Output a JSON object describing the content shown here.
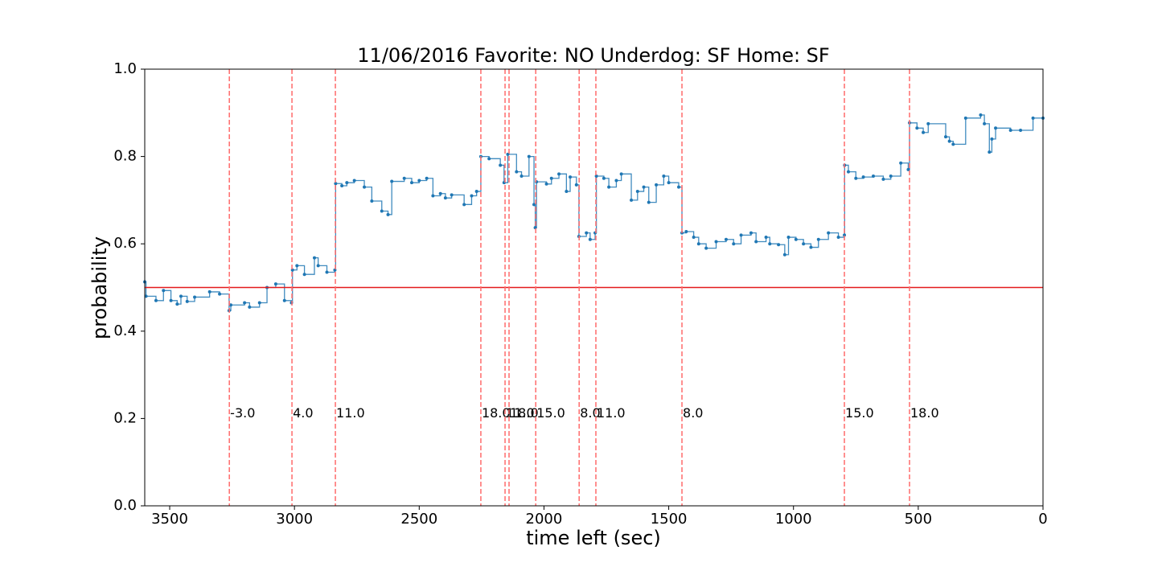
{
  "chart_data": {
    "type": "step",
    "title": "11/06/2016 Favorite: NO Underdog: SF Home: SF",
    "x_label": "time left (sec)",
    "y_label": "probability",
    "xlim": [
      3600,
      0
    ],
    "xticks": [
      3500,
      3000,
      2500,
      2000,
      1500,
      1000,
      500,
      0
    ],
    "ylim": [
      0,
      1
    ],
    "yticks": [
      {
        "value": 0,
        "label": "0.0"
      },
      0.2,
      0.4,
      0.6,
      0.8,
      {
        "value": 1,
        "label": "1.0"
      }
    ],
    "color": "#1f77b4",
    "hline": 0.5,
    "hline_color": "#e41a1c",
    "vline_color": "#ff6b6b",
    "x": [
      3600,
      3595,
      3555,
      3525,
      3495,
      3470,
      3455,
      3430,
      3400,
      3340,
      3300,
      3262,
      3255,
      3200,
      3180,
      3140,
      3110,
      3075,
      3040,
      3012,
      3008,
      2990,
      2960,
      2920,
      2905,
      2870,
      2838,
      2835,
      2810,
      2790,
      2760,
      2720,
      2690,
      2650,
      2625,
      2610,
      2560,
      2530,
      2500,
      2470,
      2445,
      2415,
      2395,
      2370,
      2320,
      2290,
      2270,
      2253,
      2220,
      2175,
      2160,
      2145,
      2110,
      2090,
      2060,
      2040,
      2035,
      2030,
      1990,
      1970,
      1940,
      1910,
      1895,
      1870,
      1860,
      1830,
      1815,
      1795,
      1790,
      1760,
      1740,
      1710,
      1690,
      1650,
      1625,
      1600,
      1580,
      1550,
      1520,
      1500,
      1460,
      1447,
      1430,
      1400,
      1380,
      1350,
      1310,
      1270,
      1240,
      1210,
      1170,
      1150,
      1110,
      1095,
      1060,
      1035,
      1020,
      990,
      960,
      930,
      900,
      860,
      820,
      796,
      795,
      780,
      750,
      720,
      680,
      640,
      610,
      570,
      540,
      535,
      505,
      480,
      460,
      390,
      375,
      360,
      310,
      250,
      235,
      215,
      205,
      190,
      130,
      90,
      40,
      0
    ],
    "values": [
      0.513,
      0.48,
      0.47,
      0.493,
      0.47,
      0.462,
      0.48,
      0.468,
      0.478,
      0.49,
      0.485,
      0.447,
      0.46,
      0.465,
      0.455,
      0.465,
      0.5,
      0.508,
      0.47,
      0.465,
      0.54,
      0.55,
      0.53,
      0.568,
      0.55,
      0.535,
      0.54,
      0.738,
      0.733,
      0.74,
      0.745,
      0.73,
      0.698,
      0.675,
      0.667,
      0.743,
      0.75,
      0.74,
      0.745,
      0.75,
      0.71,
      0.715,
      0.705,
      0.712,
      0.69,
      0.71,
      0.72,
      0.8,
      0.795,
      0.78,
      0.74,
      0.805,
      0.765,
      0.755,
      0.8,
      0.69,
      0.637,
      0.742,
      0.737,
      0.75,
      0.76,
      0.72,
      0.753,
      0.735,
      0.617,
      0.625,
      0.61,
      0.625,
      0.755,
      0.75,
      0.73,
      0.745,
      0.76,
      0.7,
      0.72,
      0.73,
      0.695,
      0.735,
      0.755,
      0.74,
      0.73,
      0.625,
      0.628,
      0.615,
      0.6,
      0.59,
      0.605,
      0.61,
      0.6,
      0.62,
      0.625,
      0.605,
      0.615,
      0.6,
      0.598,
      0.575,
      0.615,
      0.61,
      0.6,
      0.592,
      0.61,
      0.625,
      0.615,
      0.62,
      0.78,
      0.765,
      0.75,
      0.753,
      0.755,
      0.748,
      0.755,
      0.785,
      0.77,
      0.877,
      0.865,
      0.855,
      0.875,
      0.845,
      0.835,
      0.828,
      0.888,
      0.895,
      0.875,
      0.81,
      0.84,
      0.865,
      0.86,
      0.86,
      0.888,
      0.888
    ],
    "vlines": [
      {
        "x": 3261,
        "label": "-3.0"
      },
      {
        "x": 3010,
        "label": "4.0"
      },
      {
        "x": 2836,
        "label": "11.0"
      },
      {
        "x": 2253,
        "label": "18.0"
      },
      {
        "x": 2156,
        "label": "11.0"
      },
      {
        "x": 2140,
        "label": "18.0"
      },
      {
        "x": 2033,
        "label": "15.0"
      },
      {
        "x": 1859,
        "label": "8.0"
      },
      {
        "x": 1792,
        "label": "11.0"
      },
      {
        "x": 1447,
        "label": "8.0"
      },
      {
        "x": 796,
        "label": "15.0"
      },
      {
        "x": 535,
        "label": "18.0"
      }
    ]
  }
}
